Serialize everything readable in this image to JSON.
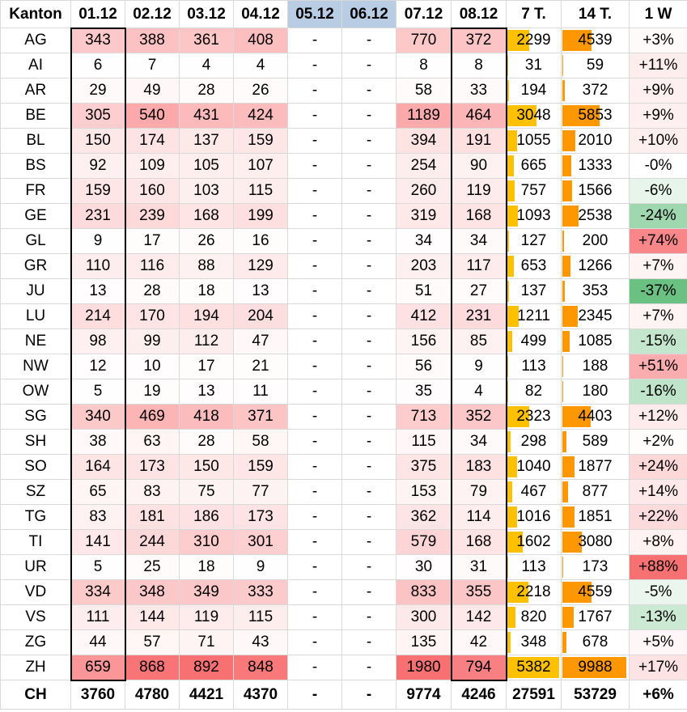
{
  "header": [
    "Kanton",
    "01.12",
    "02.12",
    "03.12",
    "04.12",
    "05.12",
    "06.12",
    "07.12",
    "08.12",
    "7 T.",
    "14 T.",
    "1 W"
  ],
  "highlight_headers": [
    5,
    6
  ],
  "rows": [
    {
      "k": "AG",
      "d": [
        343,
        388,
        361,
        408,
        "-",
        "-",
        770,
        372
      ],
      "t7": 2299,
      "t14": 4539,
      "w": "+3%"
    },
    {
      "k": "AI",
      "d": [
        6,
        7,
        4,
        4,
        "-",
        "-",
        8,
        8
      ],
      "t7": 31,
      "t14": 59,
      "w": "+11%"
    },
    {
      "k": "AR",
      "d": [
        29,
        49,
        28,
        26,
        "-",
        "-",
        58,
        33
      ],
      "t7": 194,
      "t14": 372,
      "w": "+9%"
    },
    {
      "k": "BE",
      "d": [
        305,
        540,
        431,
        424,
        "-",
        "-",
        1189,
        464
      ],
      "t7": 3048,
      "t14": 5853,
      "w": "+9%"
    },
    {
      "k": "BL",
      "d": [
        150,
        174,
        137,
        159,
        "-",
        "-",
        394,
        191
      ],
      "t7": 1055,
      "t14": 2010,
      "w": "+10%"
    },
    {
      "k": "BS",
      "d": [
        92,
        109,
        105,
        107,
        "-",
        "-",
        254,
        90
      ],
      "t7": 665,
      "t14": 1333,
      "w": "-0%"
    },
    {
      "k": "FR",
      "d": [
        159,
        160,
        103,
        115,
        "-",
        "-",
        260,
        119
      ],
      "t7": 757,
      "t14": 1566,
      "w": "-6%"
    },
    {
      "k": "GE",
      "d": [
        231,
        239,
        168,
        199,
        "-",
        "-",
        319,
        168
      ],
      "t7": 1093,
      "t14": 2538,
      "w": "-24%"
    },
    {
      "k": "GL",
      "d": [
        9,
        17,
        26,
        16,
        "-",
        "-",
        34,
        34
      ],
      "t7": 127,
      "t14": 200,
      "w": "+74%"
    },
    {
      "k": "GR",
      "d": [
        110,
        116,
        88,
        129,
        "-",
        "-",
        203,
        117
      ],
      "t7": 653,
      "t14": 1266,
      "w": "+7%"
    },
    {
      "k": "JU",
      "d": [
        13,
        28,
        18,
        13,
        "-",
        "-",
        51,
        27
      ],
      "t7": 137,
      "t14": 353,
      "w": "-37%"
    },
    {
      "k": "LU",
      "d": [
        214,
        170,
        194,
        204,
        "-",
        "-",
        412,
        231
      ],
      "t7": 1211,
      "t14": 2345,
      "w": "+7%"
    },
    {
      "k": "NE",
      "d": [
        98,
        99,
        112,
        47,
        "-",
        "-",
        156,
        85
      ],
      "t7": 499,
      "t14": 1085,
      "w": "-15%"
    },
    {
      "k": "NW",
      "d": [
        12,
        10,
        17,
        21,
        "-",
        "-",
        56,
        9
      ],
      "t7": 113,
      "t14": 188,
      "w": "+51%"
    },
    {
      "k": "OW",
      "d": [
        5,
        19,
        13,
        11,
        "-",
        "-",
        35,
        4
      ],
      "t7": 82,
      "t14": 180,
      "w": "-16%"
    },
    {
      "k": "SG",
      "d": [
        340,
        469,
        418,
        371,
        "-",
        "-",
        713,
        352
      ],
      "t7": 2323,
      "t14": 4403,
      "w": "+12%"
    },
    {
      "k": "SH",
      "d": [
        38,
        63,
        28,
        58,
        "-",
        "-",
        115,
        34
      ],
      "t7": 298,
      "t14": 589,
      "w": "+2%"
    },
    {
      "k": "SO",
      "d": [
        164,
        173,
        150,
        159,
        "-",
        "-",
        375,
        183
      ],
      "t7": 1040,
      "t14": 1877,
      "w": "+24%"
    },
    {
      "k": "SZ",
      "d": [
        65,
        83,
        75,
        77,
        "-",
        "-",
        153,
        79
      ],
      "t7": 467,
      "t14": 877,
      "w": "+14%"
    },
    {
      "k": "TG",
      "d": [
        83,
        181,
        186,
        173,
        "-",
        "-",
        362,
        114
      ],
      "t7": 1016,
      "t14": 1851,
      "w": "+22%"
    },
    {
      "k": "TI",
      "d": [
        141,
        244,
        310,
        301,
        "-",
        "-",
        579,
        168
      ],
      "t7": 1602,
      "t14": 3080,
      "w": "+8%"
    },
    {
      "k": "UR",
      "d": [
        5,
        25,
        18,
        9,
        "-",
        "-",
        30,
        31
      ],
      "t7": 113,
      "t14": 173,
      "w": "+88%"
    },
    {
      "k": "VD",
      "d": [
        334,
        348,
        349,
        333,
        "-",
        "-",
        833,
        355
      ],
      "t7": 2218,
      "t14": 4559,
      "w": "-5%"
    },
    {
      "k": "VS",
      "d": [
        111,
        144,
        119,
        115,
        "-",
        "-",
        300,
        142
      ],
      "t7": 820,
      "t14": 1767,
      "w": "-13%"
    },
    {
      "k": "ZG",
      "d": [
        44,
        57,
        71,
        43,
        "-",
        "-",
        135,
        42
      ],
      "t7": 348,
      "t14": 678,
      "w": "+5%"
    },
    {
      "k": "ZH",
      "d": [
        659,
        868,
        892,
        848,
        "-",
        "-",
        1980,
        794
      ],
      "t7": 5382,
      "t14": 9988,
      "w": "+17%"
    }
  ],
  "total": {
    "k": "CH",
    "d": [
      3760,
      4780,
      4421,
      4370,
      "-",
      "-",
      9774,
      4246
    ],
    "t7": 27591,
    "t14": 53729,
    "w": "+6%"
  },
  "colors": {
    "heat": "#f8696b",
    "bar7": "#ffc000",
    "bar14": "#ff9800",
    "neg": "#63be7b",
    "pos": "#f8696b",
    "header_highlight": "#b8cce4"
  }
}
